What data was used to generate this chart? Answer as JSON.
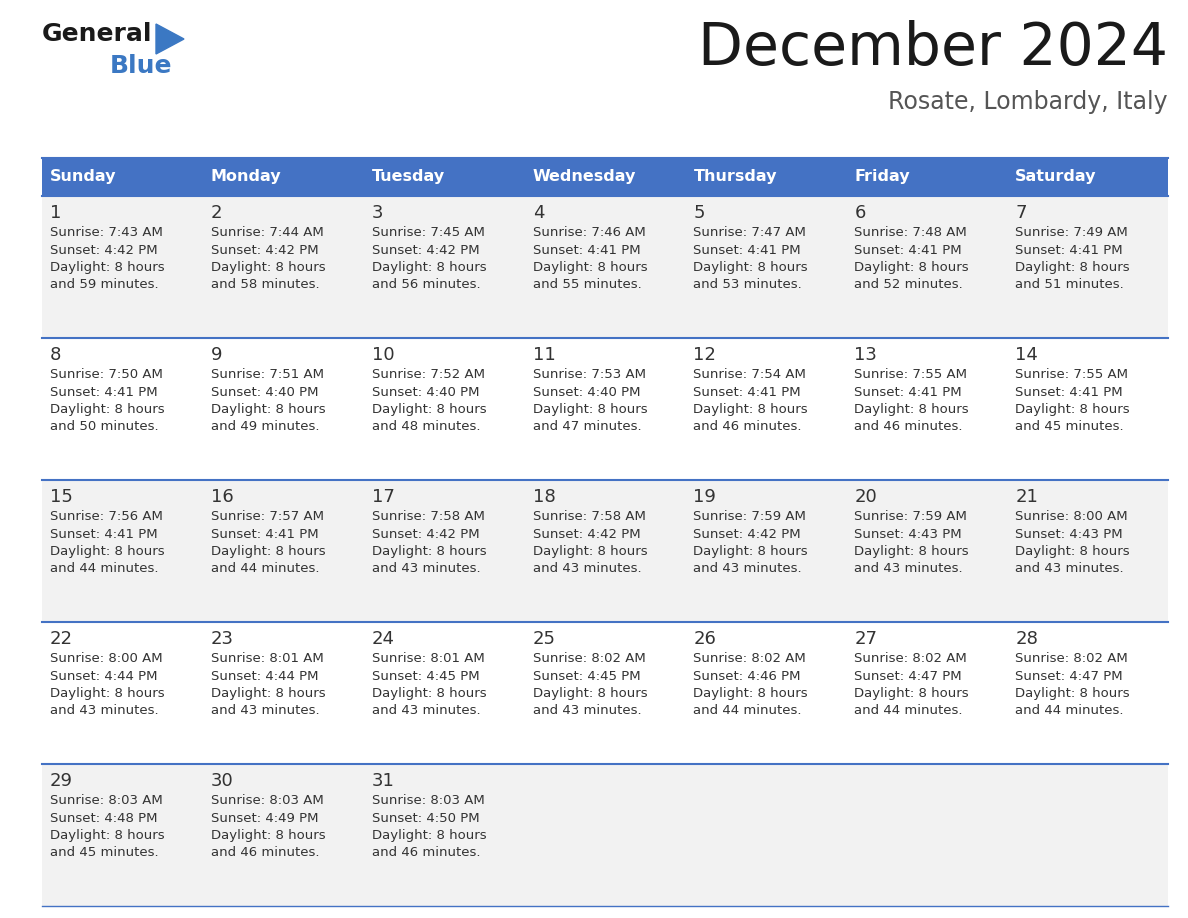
{
  "title": "December 2024",
  "subtitle": "Rosate, Lombardy, Italy",
  "header_bg_color": "#4472C4",
  "header_text_color": "#FFFFFF",
  "header_days": [
    "Sunday",
    "Monday",
    "Tuesday",
    "Wednesday",
    "Thursday",
    "Friday",
    "Saturday"
  ],
  "row_bg_even": "#F2F2F2",
  "row_bg_odd": "#FFFFFF",
  "divider_color": "#4472C4",
  "cell_text_color": "#333333",
  "days": [
    {
      "day": 1,
      "col": 0,
      "row": 0,
      "sunrise": "7:43 AM",
      "sunset": "4:42 PM",
      "daylight_min": "59"
    },
    {
      "day": 2,
      "col": 1,
      "row": 0,
      "sunrise": "7:44 AM",
      "sunset": "4:42 PM",
      "daylight_min": "58"
    },
    {
      "day": 3,
      "col": 2,
      "row": 0,
      "sunrise": "7:45 AM",
      "sunset": "4:42 PM",
      "daylight_min": "56"
    },
    {
      "day": 4,
      "col": 3,
      "row": 0,
      "sunrise": "7:46 AM",
      "sunset": "4:41 PM",
      "daylight_min": "55"
    },
    {
      "day": 5,
      "col": 4,
      "row": 0,
      "sunrise": "7:47 AM",
      "sunset": "4:41 PM",
      "daylight_min": "53"
    },
    {
      "day": 6,
      "col": 5,
      "row": 0,
      "sunrise": "7:48 AM",
      "sunset": "4:41 PM",
      "daylight_min": "52"
    },
    {
      "day": 7,
      "col": 6,
      "row": 0,
      "sunrise": "7:49 AM",
      "sunset": "4:41 PM",
      "daylight_min": "51"
    },
    {
      "day": 8,
      "col": 0,
      "row": 1,
      "sunrise": "7:50 AM",
      "sunset": "4:41 PM",
      "daylight_min": "50"
    },
    {
      "day": 9,
      "col": 1,
      "row": 1,
      "sunrise": "7:51 AM",
      "sunset": "4:40 PM",
      "daylight_min": "49"
    },
    {
      "day": 10,
      "col": 2,
      "row": 1,
      "sunrise": "7:52 AM",
      "sunset": "4:40 PM",
      "daylight_min": "48"
    },
    {
      "day": 11,
      "col": 3,
      "row": 1,
      "sunrise": "7:53 AM",
      "sunset": "4:40 PM",
      "daylight_min": "47"
    },
    {
      "day": 12,
      "col": 4,
      "row": 1,
      "sunrise": "7:54 AM",
      "sunset": "4:41 PM",
      "daylight_min": "46"
    },
    {
      "day": 13,
      "col": 5,
      "row": 1,
      "sunrise": "7:55 AM",
      "sunset": "4:41 PM",
      "daylight_min": "46"
    },
    {
      "day": 14,
      "col": 6,
      "row": 1,
      "sunrise": "7:55 AM",
      "sunset": "4:41 PM",
      "daylight_min": "45"
    },
    {
      "day": 15,
      "col": 0,
      "row": 2,
      "sunrise": "7:56 AM",
      "sunset": "4:41 PM",
      "daylight_min": "44"
    },
    {
      "day": 16,
      "col": 1,
      "row": 2,
      "sunrise": "7:57 AM",
      "sunset": "4:41 PM",
      "daylight_min": "44"
    },
    {
      "day": 17,
      "col": 2,
      "row": 2,
      "sunrise": "7:58 AM",
      "sunset": "4:42 PM",
      "daylight_min": "43"
    },
    {
      "day": 18,
      "col": 3,
      "row": 2,
      "sunrise": "7:58 AM",
      "sunset": "4:42 PM",
      "daylight_min": "43"
    },
    {
      "day": 19,
      "col": 4,
      "row": 2,
      "sunrise": "7:59 AM",
      "sunset": "4:42 PM",
      "daylight_min": "43"
    },
    {
      "day": 20,
      "col": 5,
      "row": 2,
      "sunrise": "7:59 AM",
      "sunset": "4:43 PM",
      "daylight_min": "43"
    },
    {
      "day": 21,
      "col": 6,
      "row": 2,
      "sunrise": "8:00 AM",
      "sunset": "4:43 PM",
      "daylight_min": "43"
    },
    {
      "day": 22,
      "col": 0,
      "row": 3,
      "sunrise": "8:00 AM",
      "sunset": "4:44 PM",
      "daylight_min": "43"
    },
    {
      "day": 23,
      "col": 1,
      "row": 3,
      "sunrise": "8:01 AM",
      "sunset": "4:44 PM",
      "daylight_min": "43"
    },
    {
      "day": 24,
      "col": 2,
      "row": 3,
      "sunrise": "8:01 AM",
      "sunset": "4:45 PM",
      "daylight_min": "43"
    },
    {
      "day": 25,
      "col": 3,
      "row": 3,
      "sunrise": "8:02 AM",
      "sunset": "4:45 PM",
      "daylight_min": "43"
    },
    {
      "day": 26,
      "col": 4,
      "row": 3,
      "sunrise": "8:02 AM",
      "sunset": "4:46 PM",
      "daylight_min": "44"
    },
    {
      "day": 27,
      "col": 5,
      "row": 3,
      "sunrise": "8:02 AM",
      "sunset": "4:47 PM",
      "daylight_min": "44"
    },
    {
      "day": 28,
      "col": 6,
      "row": 3,
      "sunrise": "8:02 AM",
      "sunset": "4:47 PM",
      "daylight_min": "44"
    },
    {
      "day": 29,
      "col": 0,
      "row": 4,
      "sunrise": "8:03 AM",
      "sunset": "4:48 PM",
      "daylight_min": "45"
    },
    {
      "day": 30,
      "col": 1,
      "row": 4,
      "sunrise": "8:03 AM",
      "sunset": "4:49 PM",
      "daylight_min": "46"
    },
    {
      "day": 31,
      "col": 2,
      "row": 4,
      "sunrise": "8:03 AM",
      "sunset": "4:50 PM",
      "daylight_min": "46"
    }
  ],
  "logo_general_color": "#1a1a1a",
  "logo_blue_color": "#3B78C3",
  "title_color": "#1a1a1a",
  "subtitle_color": "#555555"
}
